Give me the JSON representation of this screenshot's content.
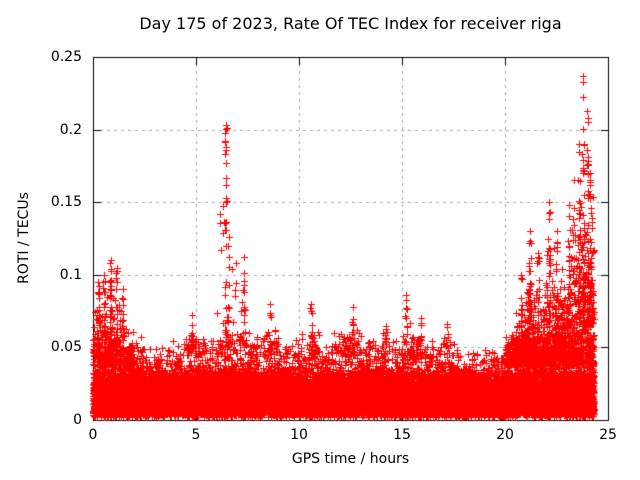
{
  "chart_data": {
    "type": "scatter",
    "title": "Day 175 of 2023, Rate Of TEC Index for receiver riga",
    "xlabel": "GPS time / hours",
    "ylabel": "ROTI / TECUs",
    "xlim": [
      0,
      25
    ],
    "ylim": [
      0,
      0.25
    ],
    "xticks": [
      0,
      5,
      10,
      15,
      20,
      25
    ],
    "xtick_labels": [
      "0",
      "5",
      "10",
      "15",
      "20",
      "25"
    ],
    "yticks": [
      0,
      0.05,
      0.1,
      0.15,
      0.2,
      0.25
    ],
    "ytick_labels": [
      "0",
      "0.05",
      "0.1",
      "0.15",
      "0.2",
      "0.25"
    ],
    "grid": true,
    "grid_style": "dashed",
    "grid_color": "#a8a8a8",
    "border_color": "#000000",
    "marker": "plus",
    "marker_color": "#ff0000",
    "legend": "none",
    "description": "Dense baseline band ~0.005-0.045 TECUs across 0-24.3 h; enhanced activity 0-2 h peaking ~0.11; isolated spike column near 6.5 h peaking 0.203; strong enhancement 20.5-24.3 h rising to maximum 0.237 near 23.8 h.",
    "time_range": [
      0,
      24.3
    ],
    "baseline_band": [
      0.005,
      0.045
    ],
    "envelope_bin_hours": 0.5,
    "envelope_max": [
      0.1,
      0.11,
      0.105,
      0.08,
      0.06,
      0.05,
      0.055,
      0.062,
      0.058,
      0.07,
      0.068,
      0.058,
      0.205,
      0.165,
      0.112,
      0.07,
      0.065,
      0.08,
      0.062,
      0.058,
      0.066,
      0.08,
      0.058,
      0.065,
      0.072,
      0.078,
      0.062,
      0.058,
      0.066,
      0.06,
      0.086,
      0.07,
      0.062,
      0.056,
      0.066,
      0.056,
      0.05,
      0.046,
      0.056,
      0.05,
      0.062,
      0.1,
      0.13,
      0.12,
      0.15,
      0.132,
      0.165,
      0.237,
      0.213
    ],
    "spike_columns": [
      {
        "t": 0.25,
        "vmax": 0.095,
        "n": 20
      },
      {
        "t": 0.55,
        "vmax": 0.1,
        "n": 18
      },
      {
        "t": 0.85,
        "vmax": 0.11,
        "n": 22
      },
      {
        "t": 1.15,
        "vmax": 0.105,
        "n": 18
      },
      {
        "t": 1.45,
        "vmax": 0.09,
        "n": 14
      },
      {
        "t": 4.8,
        "vmax": 0.072,
        "n": 10
      },
      {
        "t": 6.45,
        "vmax": 0.203,
        "n": 30
      },
      {
        "t": 6.55,
        "vmax": 0.12,
        "n": 16
      },
      {
        "t": 7.35,
        "vmax": 0.112,
        "n": 12
      },
      {
        "t": 8.6,
        "vmax": 0.08,
        "n": 10
      },
      {
        "t": 10.6,
        "vmax": 0.08,
        "n": 10
      },
      {
        "t": 12.6,
        "vmax": 0.078,
        "n": 8
      },
      {
        "t": 14.2,
        "vmax": 0.065,
        "n": 8
      },
      {
        "t": 15.2,
        "vmax": 0.086,
        "n": 10
      },
      {
        "t": 15.9,
        "vmax": 0.07,
        "n": 8
      },
      {
        "t": 17.2,
        "vmax": 0.066,
        "n": 8
      },
      {
        "t": 20.8,
        "vmax": 0.1,
        "n": 16
      },
      {
        "t": 21.2,
        "vmax": 0.13,
        "n": 24
      },
      {
        "t": 21.6,
        "vmax": 0.115,
        "n": 18
      },
      {
        "t": 22.15,
        "vmax": 0.15,
        "n": 26
      },
      {
        "t": 22.5,
        "vmax": 0.13,
        "n": 20
      },
      {
        "t": 23.1,
        "vmax": 0.148,
        "n": 24
      },
      {
        "t": 23.35,
        "vmax": 0.165,
        "n": 22
      },
      {
        "t": 23.6,
        "vmax": 0.19,
        "n": 28
      },
      {
        "t": 23.8,
        "vmax": 0.237,
        "n": 30
      },
      {
        "t": 24.0,
        "vmax": 0.213,
        "n": 30
      },
      {
        "t": 24.15,
        "vmax": 0.17,
        "n": 24
      }
    ],
    "seed": 175
  }
}
